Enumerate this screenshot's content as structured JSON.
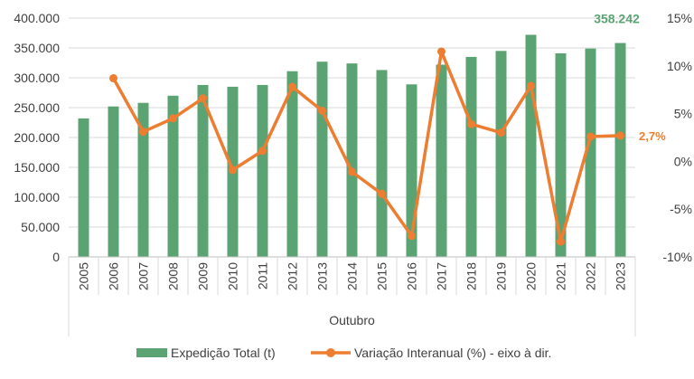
{
  "chart_data": {
    "type": "bar",
    "categories": [
      "2005",
      "2006",
      "2007",
      "2008",
      "2009",
      "2010",
      "2011",
      "2012",
      "2013",
      "2014",
      "2015",
      "2016",
      "2017",
      "2018",
      "2019",
      "2020",
      "2021",
      "2022",
      "2023"
    ],
    "series": [
      {
        "name": "Expedição Total (t)",
        "type": "bar",
        "axis": "left",
        "color": "#5ba373",
        "values": [
          232000,
          252000,
          258000,
          270000,
          288000,
          285000,
          288000,
          311000,
          327000,
          324000,
          313000,
          289000,
          322000,
          335000,
          345000,
          372000,
          341000,
          349000,
          358242
        ]
      },
      {
        "name": "Variação Interanual (%) - eixo à dir.",
        "type": "line",
        "axis": "right",
        "color": "#ed7d31",
        "values": [
          null,
          8.7,
          3.1,
          4.5,
          6.6,
          -0.9,
          1.1,
          7.8,
          5.3,
          -1.1,
          -3.4,
          -7.8,
          11.5,
          3.9,
          3.0,
          7.9,
          -8.4,
          2.6,
          2.7
        ]
      }
    ],
    "xlabel": "Outubro",
    "ylim": [
      0,
      400000
    ],
    "y_ticks": [
      "0",
      "50.000",
      "100.000",
      "150.000",
      "200.000",
      "250.000",
      "300.000",
      "350.000",
      "400.000"
    ],
    "y2lim": [
      -10,
      15
    ],
    "y2_ticks": [
      "-10%",
      "-5%",
      "0%",
      "5%",
      "10%",
      "15%"
    ],
    "grid": true,
    "legend_position": "bottom",
    "annotations": {
      "bar_last_label": "358.242",
      "line_last_label": "2,7%"
    }
  }
}
